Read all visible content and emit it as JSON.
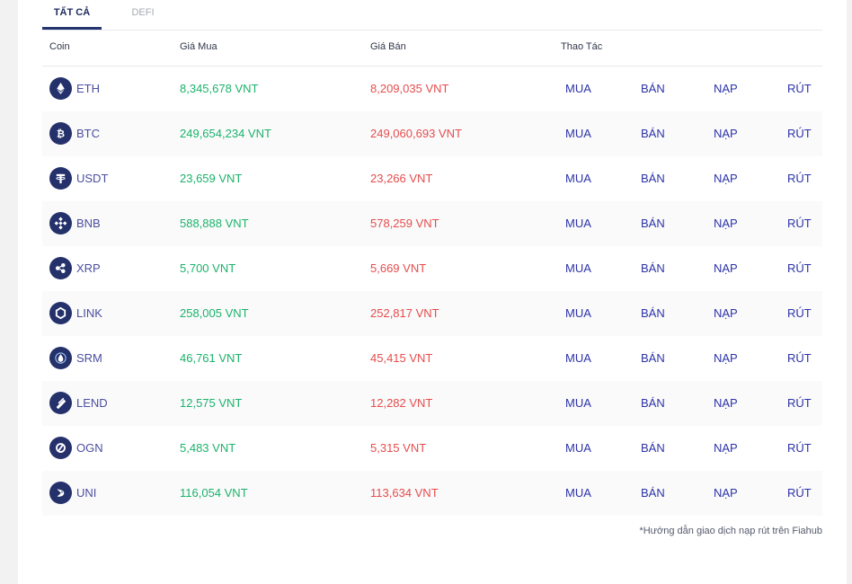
{
  "tabs": [
    {
      "label": "TẤT CẢ",
      "active": true
    },
    {
      "label": "DEFI",
      "active": false
    }
  ],
  "table": {
    "headers": {
      "coin": "Coin",
      "buy": "Giá Mua",
      "sell": "Giá Bán",
      "actions": "Thao Tác"
    },
    "action_labels": {
      "buy": "MUA",
      "sell": "BÁN",
      "deposit": "NẠP",
      "withdraw": "RÚT"
    },
    "rows": [
      {
        "coin": "ETH",
        "icon": "eth-icon",
        "buy": "8,345,678 VNT",
        "sell": "8,209,035 VNT"
      },
      {
        "coin": "BTC",
        "icon": "btc-icon",
        "buy": "249,654,234 VNT",
        "sell": "249,060,693 VNT"
      },
      {
        "coin": "USDT",
        "icon": "usdt-icon",
        "buy": "23,659 VNT",
        "sell": "23,266 VNT"
      },
      {
        "coin": "BNB",
        "icon": "bnb-icon",
        "buy": "588,888 VNT",
        "sell": "578,259 VNT"
      },
      {
        "coin": "XRP",
        "icon": "xrp-icon",
        "buy": "5,700 VNT",
        "sell": "5,669 VNT"
      },
      {
        "coin": "LINK",
        "icon": "link-icon",
        "buy": "258,005 VNT",
        "sell": "252,817 VNT"
      },
      {
        "coin": "SRM",
        "icon": "srm-icon",
        "buy": "46,761 VNT",
        "sell": "45,415 VNT"
      },
      {
        "coin": "LEND",
        "icon": "lend-icon",
        "buy": "12,575 VNT",
        "sell": "12,282 VNT"
      },
      {
        "coin": "OGN",
        "icon": "ogn-icon",
        "buy": "5,483 VNT",
        "sell": "5,315 VNT"
      },
      {
        "coin": "UNI",
        "icon": "uni-icon",
        "buy": "116,054 VNT",
        "sell": "113,634 VNT"
      }
    ]
  },
  "footnote": "*Hướng dẫn giao dịch nạp rút trên Fiahub",
  "colors": {
    "buy": "#1bb36a",
    "sell": "#e64c4c",
    "action": "#2c33a8",
    "coin_name": "#4b4e9f",
    "icon_bg": "#24316b"
  }
}
